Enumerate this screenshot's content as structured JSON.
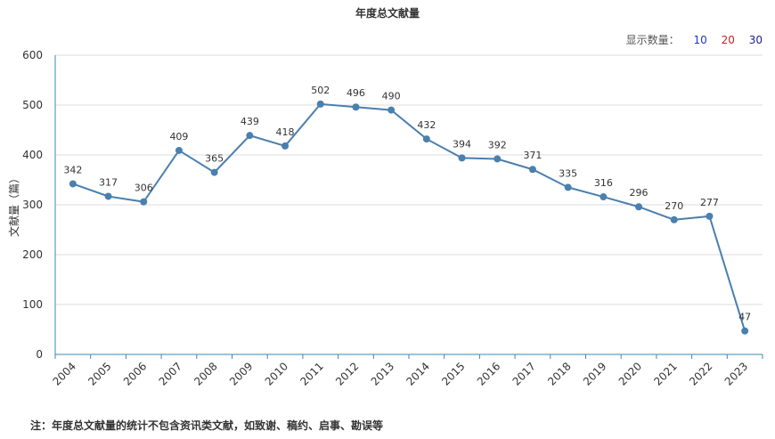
{
  "chart_data": {
    "type": "line",
    "title": "年度总文献量",
    "ylabel": "文献量（篇）",
    "xlabel": "",
    "ylim": [
      0,
      600
    ],
    "yticks": [
      0,
      100,
      200,
      300,
      400,
      500,
      600
    ],
    "grid": true,
    "line_color": "#4a7fae",
    "categories": [
      "2004",
      "2005",
      "2006",
      "2007",
      "2008",
      "2009",
      "2010",
      "2011",
      "2012",
      "2013",
      "2014",
      "2015",
      "2016",
      "2017",
      "2018",
      "2019",
      "2020",
      "2021",
      "2022",
      "2023"
    ],
    "series": [
      {
        "values": [
          342,
          317,
          306,
          409,
          365,
          439,
          418,
          502,
          496,
          490,
          432,
          394,
          392,
          371,
          335,
          316,
          296,
          270,
          277,
          47
        ]
      }
    ]
  },
  "controls": {
    "display_label": "显示数量：",
    "options": [
      "10",
      "20",
      "30"
    ]
  },
  "note": "注：年度总文献量的统计不包含资讯类文献，如致谢、稿约、启事、勘误等"
}
